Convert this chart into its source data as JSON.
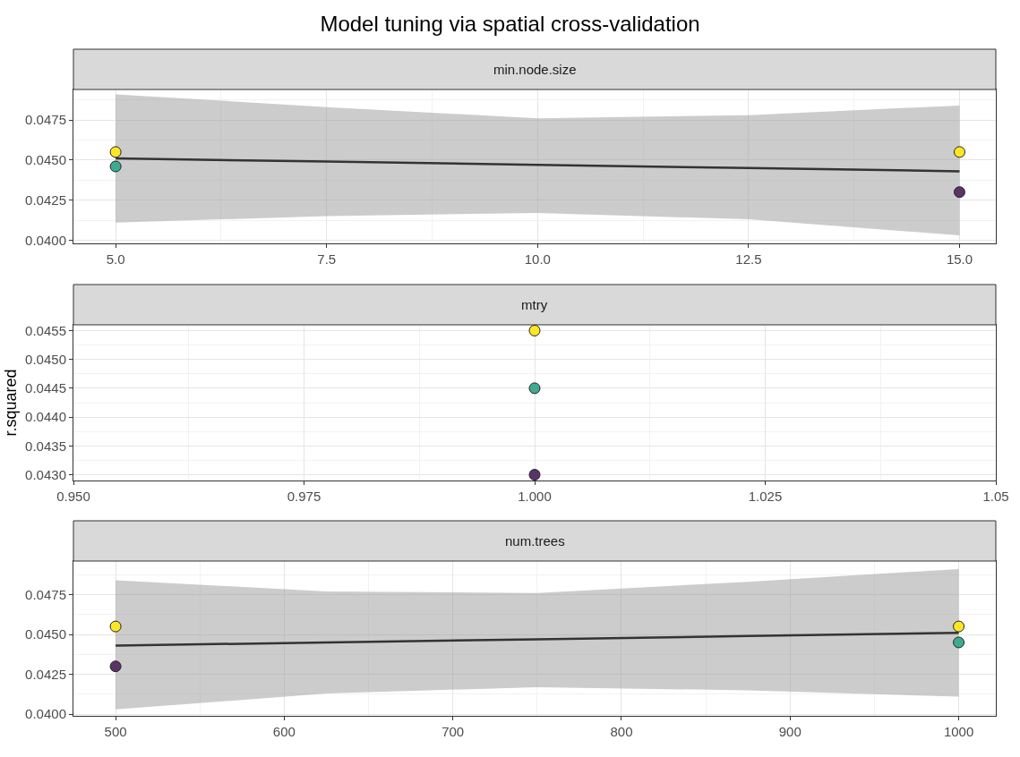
{
  "chart_data": [
    {
      "type": "scatter",
      "title": "Model tuning via spatial cross-validation",
      "subtitle": "min.node.size",
      "marker": "circle",
      "grid": true,
      "xlim": [
        4.5,
        15.43
      ],
      "xticks": [
        {
          "value": 5,
          "label": "5.0"
        },
        {
          "value": 7.5,
          "label": "7.5"
        },
        {
          "value": 10,
          "label": "10.0"
        },
        {
          "value": 12.5,
          "label": "12.5"
        },
        {
          "value": 15,
          "label": "15.0"
        }
      ],
      "ylim": [
        0.0398,
        0.0494
      ],
      "yticks": [
        {
          "value": 0.04,
          "label": "0.0400"
        },
        {
          "value": 0.0425,
          "label": "0.0425"
        },
        {
          "value": 0.045,
          "label": "0.0450"
        },
        {
          "value": 0.0475,
          "label": "0.0475"
        }
      ],
      "series": [
        {
          "type": "line",
          "marker": "none",
          "color": "#333333",
          "x": [
            5,
            7.5,
            10,
            12.5,
            15
          ],
          "values": [
            0.0451,
            0.0449,
            0.0447,
            0.0445,
            0.0443
          ],
          "lower": [
            0.0411,
            0.0415,
            0.0417,
            0.0413,
            0.0403
          ],
          "upper": [
            0.0491,
            0.0483,
            0.0476,
            0.0478,
            0.0484
          ]
        },
        {
          "color": "#fde725",
          "x": [
            5,
            15
          ],
          "values": [
            0.0455,
            0.0455
          ]
        },
        {
          "color": "#3cab8f",
          "x": [
            5
          ],
          "values": [
            0.0446
          ]
        },
        {
          "color": "#5a3469",
          "x": [
            15
          ],
          "values": [
            0.043
          ]
        }
      ]
    },
    {
      "type": "scatter",
      "subtitle": "mtry",
      "ylabel": "r.squared",
      "marker": "circle",
      "grid": true,
      "xlim": [
        0.95,
        1.05
      ],
      "xticks": [
        {
          "value": 0.95,
          "label": "0.950"
        },
        {
          "value": 0.975,
          "label": "0.975"
        },
        {
          "value": 1,
          "label": "1.000"
        },
        {
          "value": 1.025,
          "label": "1.025"
        },
        1.05
      ],
      "ylim": [
        0.0429,
        0.0456
      ],
      "yticks": [
        {
          "value": 0.043,
          "label": "0.0430"
        },
        {
          "value": 0.0435,
          "label": "0.0435"
        },
        {
          "value": 0.044,
          "label": "0.0440"
        },
        {
          "value": 0.0445,
          "label": "0.0445"
        },
        {
          "value": 0.045,
          "label": "0.0450"
        },
        {
          "value": 0.0455,
          "label": "0.0455"
        }
      ],
      "series": [
        {
          "color": "#fde725",
          "x": [
            1
          ],
          "values": [
            0.0455
          ]
        },
        {
          "color": "#3cab8f",
          "x": [
            1
          ],
          "values": [
            0.0445
          ]
        },
        {
          "color": "#5a3469",
          "x": [
            1
          ],
          "values": [
            0.043
          ]
        }
      ]
    },
    {
      "type": "scatter",
      "subtitle": "num.trees",
      "marker": "circle",
      "grid": true,
      "xlim": [
        475,
        1022
      ],
      "xticks": [
        500,
        600,
        700,
        800,
        900,
        1000
      ],
      "ylim": [
        0.0399,
        0.0496
      ],
      "yticks": [
        {
          "value": 0.04,
          "label": "0.0400"
        },
        {
          "value": 0.0425,
          "label": "0.0425"
        },
        {
          "value": 0.045,
          "label": "0.0450"
        },
        {
          "value": 0.0475,
          "label": "0.0475"
        }
      ],
      "series": [
        {
          "type": "line",
          "marker": "none",
          "color": "#333333",
          "x": [
            500,
            625,
            750,
            875,
            1000
          ],
          "values": [
            0.0443,
            0.0445,
            0.0447,
            0.0449,
            0.0451
          ],
          "lower": [
            0.0403,
            0.0413,
            0.0417,
            0.0415,
            0.0411
          ],
          "upper": [
            0.0484,
            0.0477,
            0.0476,
            0.0483,
            0.0491
          ]
        },
        {
          "color": "#fde725",
          "x": [
            500,
            1000
          ],
          "values": [
            0.0455,
            0.0455
          ]
        },
        {
          "color": "#3cab8f",
          "x": [
            1000
          ],
          "values": [
            0.0445
          ]
        },
        {
          "color": "#5a3469",
          "x": [
            500
          ],
          "values": [
            0.043
          ]
        }
      ]
    }
  ]
}
